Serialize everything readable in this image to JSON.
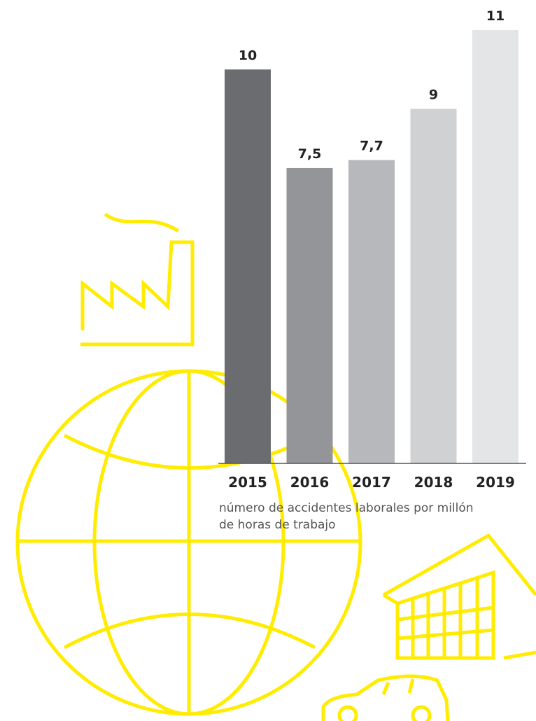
{
  "chart_data": {
    "type": "bar",
    "categories": [
      "2015",
      "2016",
      "2017",
      "2018",
      "2019"
    ],
    "values": [
      10,
      7.5,
      7.7,
      9,
      11
    ],
    "value_labels": [
      "10",
      "7,5",
      "7,7",
      "9",
      "11"
    ],
    "colors": [
      "#6b6c70",
      "#949598",
      "#b7b8bb",
      "#d0d1d3",
      "#e4e5e6"
    ],
    "caption": "número de accidentes laborales por millón de horas de trabajo"
  }
}
